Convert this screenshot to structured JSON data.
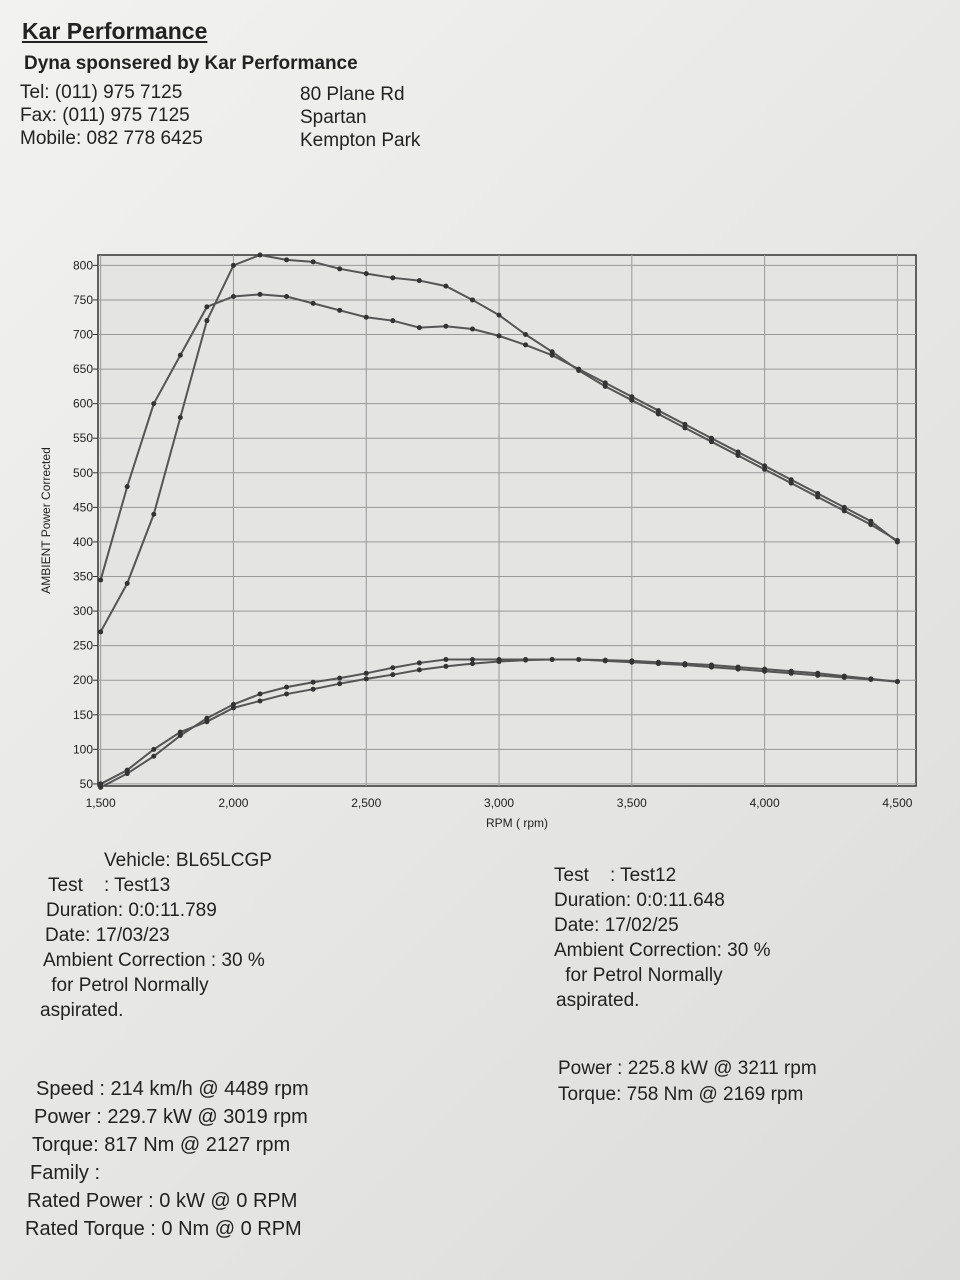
{
  "header": {
    "company": "Kar Performance",
    "sponsor": "Dyna sponsered by Kar Performance",
    "contacts": [
      "Tel: (011) 975 7125",
      "Fax: (011) 975 7125",
      "Mobile: 082 778 6425"
    ],
    "address": [
      "80 Plane Rd",
      "Spartan",
      "Kempton Park"
    ]
  },
  "chart_data": {
    "type": "line",
    "y_label": "AMBIENT Power Corrected",
    "x_label": "RPM ( rpm)",
    "x": [
      1500,
      1600,
      1700,
      1800,
      1900,
      2000,
      2100,
      2200,
      2300,
      2400,
      2500,
      2600,
      2700,
      2800,
      2900,
      3000,
      3100,
      3200,
      3300,
      3400,
      3500,
      3600,
      3700,
      3800,
      3900,
      4000,
      4100,
      4200,
      4300,
      4400,
      4500
    ],
    "xlim": [
      1490,
      4570
    ],
    "ylim": [
      47,
      815
    ],
    "xticks": [
      {
        "value": 1500,
        "label": "1,500"
      },
      {
        "value": 2000,
        "label": "2,000"
      },
      {
        "value": 2500,
        "label": "2,500"
      },
      {
        "value": 3000,
        "label": "3,000"
      },
      {
        "value": 3500,
        "label": "3,500"
      },
      {
        "value": 4000,
        "label": "4,000"
      },
      {
        "value": 4500,
        "label": "4,500"
      }
    ],
    "yticks": [
      50,
      100,
      150,
      200,
      250,
      300,
      350,
      400,
      450,
      500,
      550,
      600,
      650,
      700,
      750,
      800
    ],
    "grid": true,
    "series": [
      {
        "color": "#555555",
        "values": [
          270,
          340,
          440,
          580,
          720,
          800,
          815,
          808,
          805,
          795,
          788,
          782,
          778,
          770,
          750,
          728,
          700,
          675,
          648,
          625,
          605,
          585,
          565,
          545,
          525,
          505,
          485,
          465,
          445,
          425,
          402
        ]
      },
      {
        "color": "#555555",
        "values": [
          345,
          480,
          600,
          670,
          740,
          755,
          758,
          755,
          745,
          735,
          725,
          720,
          710,
          712,
          708,
          698,
          685,
          670,
          650,
          630,
          610,
          590,
          570,
          550,
          530,
          510,
          490,
          470,
          450,
          430,
          400
        ]
      },
      {
        "color": "#555555",
        "values": [
          45,
          65,
          90,
          120,
          145,
          165,
          180,
          190,
          197,
          203,
          210,
          218,
          225,
          230,
          230,
          230,
          230,
          230,
          230,
          228,
          226,
          224,
          222,
          219,
          216,
          213,
          210,
          207,
          204,
          201,
          198
        ]
      },
      {
        "color": "#555555",
        "values": [
          50,
          70,
          100,
          125,
          140,
          160,
          170,
          180,
          187,
          195,
          202,
          208,
          215,
          220,
          224,
          227,
          229,
          230,
          230,
          229,
          228,
          226,
          224,
          222,
          219,
          216,
          213,
          210,
          206,
          202,
          198
        ]
      }
    ]
  },
  "vehicle": "Vehicle: BL65LCGP",
  "test_left": [
    "Test    : Test13",
    "Duration: 0:0:11.789",
    "Date: 17/03/23",
    "Ambient Correction : 30 %",
    " for Petrol Normally",
    "aspirated."
  ],
  "test_right": [
    "Test    : Test12",
    "Duration: 0:0:11.648",
    "Date: 17/02/25",
    "Ambient Correction: 30 %",
    " for Petrol Normally",
    "aspirated."
  ],
  "results_left": [
    "Speed : 214 km/h @ 4489 rpm",
    "Power : 229.7 kW @ 3019 rpm",
    "Torque: 817 Nm @ 2127 rpm",
    "Family :",
    "Rated Power : 0 kW @ 0 RPM",
    "Rated Torque : 0 Nm @ 0 RPM"
  ],
  "results_right": [
    "Power : 225.8 kW @ 3211 rpm",
    "Torque: 758 Nm @ 2169 rpm"
  ]
}
